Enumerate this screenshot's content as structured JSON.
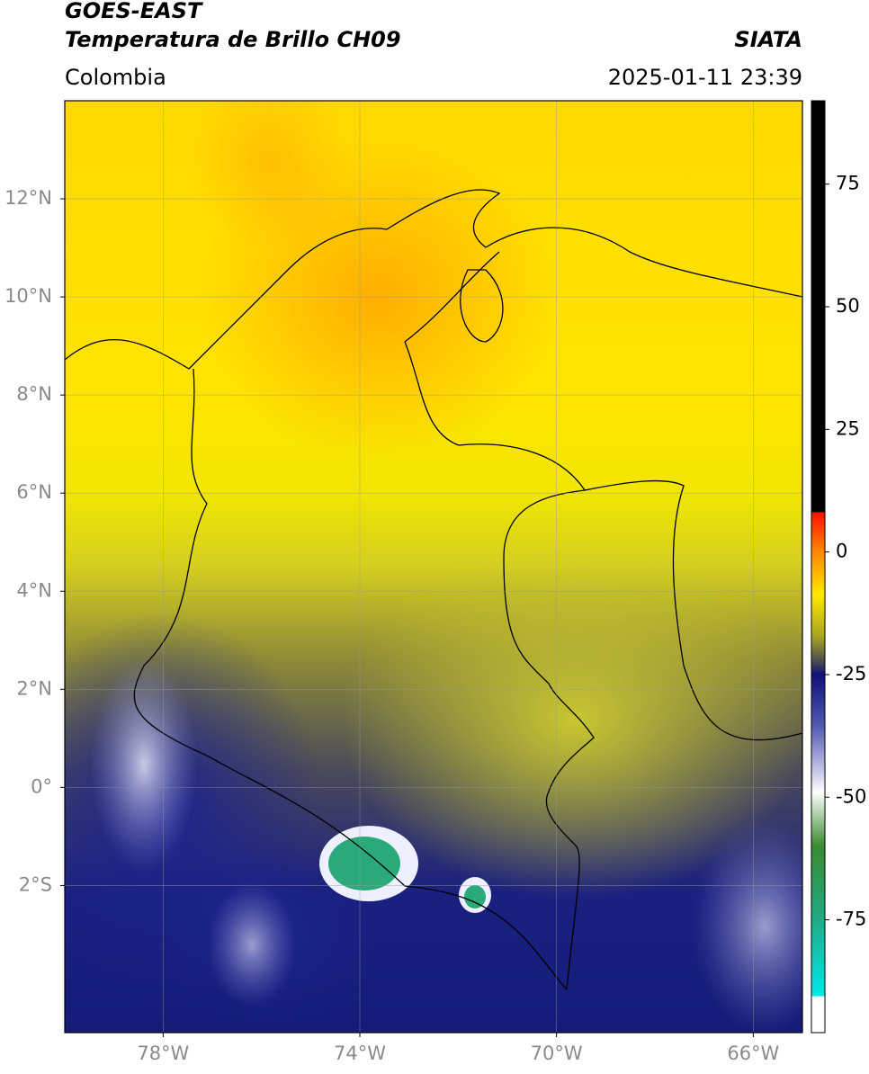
{
  "header": {
    "title_line1": "GOES-EAST",
    "title_line2": "Temperatura de Brillo CH09",
    "source": "SIATA",
    "region": "Colombia",
    "datetime": "2025-01-11 23:39"
  },
  "map": {
    "lon_range": [
      -80,
      -65
    ],
    "lat_range": [
      -5,
      14
    ],
    "grid": true,
    "lon_ticks": [
      {
        "value": -78,
        "label": "78°W"
      },
      {
        "value": -74,
        "label": "74°W"
      },
      {
        "value": -70,
        "label": "70°W"
      },
      {
        "value": -66,
        "label": "66°W"
      }
    ],
    "lat_ticks": [
      {
        "value": 12,
        "label": "12°N"
      },
      {
        "value": 10,
        "label": "10°N"
      },
      {
        "value": 8,
        "label": "8°N"
      },
      {
        "value": 6,
        "label": "6°N"
      },
      {
        "value": 4,
        "label": "4°N"
      },
      {
        "value": 2,
        "label": "2°N"
      },
      {
        "value": 0,
        "label": "0°"
      },
      {
        "value": -2,
        "label": "2°S"
      }
    ]
  },
  "colorbar": {
    "range": [
      -98,
      92
    ],
    "ticks": [
      75,
      50,
      25,
      0,
      -25,
      -50,
      -75
    ]
  }
}
